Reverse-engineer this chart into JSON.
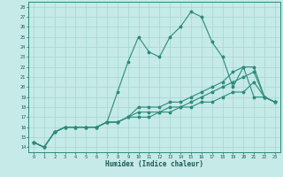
{
  "title": "",
  "xlabel": "Humidex (Indice chaleur)",
  "bg_color": "#c5eae7",
  "grid_color": "#a8d5d1",
  "line_color": "#2e8b7a",
  "xlim": [
    -0.5,
    23.5
  ],
  "ylim": [
    13.5,
    28.5
  ],
  "xticks": [
    0,
    1,
    2,
    3,
    4,
    5,
    6,
    7,
    8,
    9,
    10,
    11,
    12,
    13,
    14,
    15,
    16,
    17,
    18,
    19,
    20,
    21,
    22,
    23
  ],
  "yticks": [
    14,
    15,
    16,
    17,
    18,
    19,
    20,
    21,
    22,
    23,
    24,
    25,
    26,
    27,
    28
  ],
  "line1_x": [
    0,
    1,
    2,
    3,
    4,
    5,
    6,
    7,
    8,
    9,
    10,
    11,
    12,
    13,
    14,
    15,
    16,
    17,
    18,
    19,
    20,
    21,
    22,
    23
  ],
  "line1_y": [
    14.5,
    14.0,
    15.5,
    16.0,
    16.0,
    16.0,
    16.0,
    16.5,
    19.5,
    22.5,
    25.0,
    23.5,
    23.0,
    25.0,
    26.0,
    27.5,
    27.0,
    24.5,
    23.0,
    20.0,
    22.0,
    19.0,
    19.0,
    18.5
  ],
  "line2_x": [
    0,
    1,
    2,
    3,
    4,
    5,
    6,
    7,
    8,
    9,
    10,
    11,
    12,
    13,
    14,
    15,
    16,
    17,
    18,
    19,
    20,
    21,
    22,
    23
  ],
  "line2_y": [
    14.5,
    14.0,
    15.5,
    16.0,
    16.0,
    16.0,
    16.0,
    16.5,
    16.5,
    17.0,
    18.0,
    18.0,
    18.0,
    18.5,
    18.5,
    19.0,
    19.5,
    20.0,
    20.5,
    21.5,
    22.0,
    22.0,
    19.0,
    18.5
  ],
  "line3_x": [
    0,
    1,
    2,
    3,
    4,
    5,
    6,
    7,
    8,
    9,
    10,
    11,
    12,
    13,
    14,
    15,
    16,
    17,
    18,
    19,
    20,
    21,
    22,
    23
  ],
  "line3_y": [
    14.5,
    14.0,
    15.5,
    16.0,
    16.0,
    16.0,
    16.0,
    16.5,
    16.5,
    17.0,
    17.5,
    17.5,
    17.5,
    18.0,
    18.0,
    18.5,
    19.0,
    19.5,
    20.0,
    20.5,
    21.0,
    21.5,
    19.0,
    18.5
  ],
  "line4_x": [
    0,
    1,
    2,
    3,
    4,
    5,
    6,
    7,
    8,
    9,
    10,
    11,
    12,
    13,
    14,
    15,
    16,
    17,
    18,
    19,
    20,
    21,
    22,
    23
  ],
  "line4_y": [
    14.5,
    14.0,
    15.5,
    16.0,
    16.0,
    16.0,
    16.0,
    16.5,
    16.5,
    17.0,
    17.0,
    17.0,
    17.5,
    17.5,
    18.0,
    18.0,
    18.5,
    18.5,
    19.0,
    19.5,
    19.5,
    20.5,
    19.0,
    18.5
  ]
}
